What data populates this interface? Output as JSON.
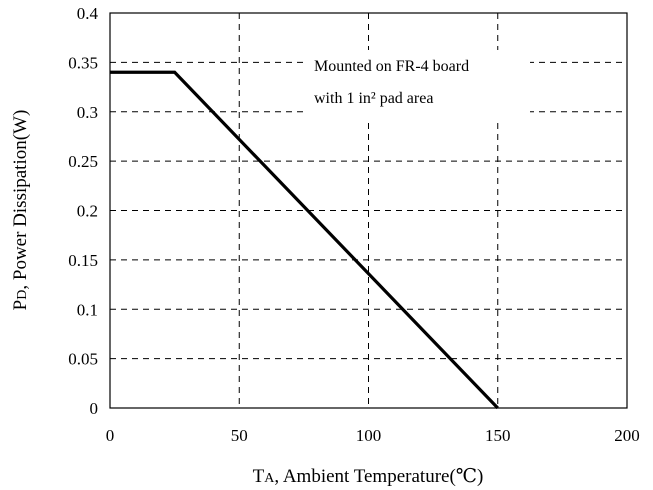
{
  "chart_data": {
    "type": "line",
    "x": [
      0,
      25,
      150
    ],
    "series": [
      {
        "values": [
          0.34,
          0.34,
          0
        ],
        "color": "#000000"
      }
    ],
    "xlim": [
      0,
      200
    ],
    "ylim": [
      0,
      0.4
    ],
    "xticks": [
      "0",
      "50",
      "100",
      "150",
      "200"
    ],
    "yticks": [
      "0",
      "0.05",
      "0.1",
      "0.15",
      "0.2",
      "0.25",
      "0.3",
      "0.35",
      "0.4"
    ],
    "xlabel": {
      "prefix": "T",
      "subscript": "A",
      "text": ", Ambient Temperature(℃)"
    },
    "ylabel": {
      "prefix": "P",
      "subscript": "D",
      "text": ", Power Dissipation(W)"
    },
    "annotation": [
      "Mounted on FR-4 board",
      "with 1 in² pad area"
    ],
    "grid": true
  }
}
